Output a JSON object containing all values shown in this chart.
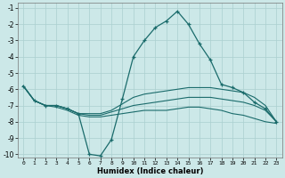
{
  "xlabel": "Humidex (Indice chaleur)",
  "background_color": "#cce8e8",
  "grid_color": "#aacfcf",
  "line_color": "#1a6b6b",
  "xlim": [
    -0.5,
    23.5
  ],
  "ylim": [
    -10.2,
    -0.7
  ],
  "yticks": [
    -10,
    -9,
    -8,
    -7,
    -6,
    -5,
    -4,
    -3,
    -2,
    -1
  ],
  "xticks": [
    0,
    1,
    2,
    3,
    4,
    5,
    6,
    7,
    8,
    9,
    10,
    11,
    12,
    13,
    14,
    15,
    16,
    17,
    18,
    19,
    20,
    21,
    22,
    23
  ],
  "line1_x": [
    0,
    1,
    2,
    3,
    4,
    5,
    6,
    7,
    8,
    9,
    10,
    11,
    12,
    13,
    14,
    15,
    16,
    17,
    18,
    19,
    20,
    21,
    22,
    23
  ],
  "line1_y": [
    -5.8,
    -6.7,
    -7.0,
    -7.0,
    -7.2,
    -7.5,
    -10.0,
    -10.1,
    -9.1,
    -6.6,
    -4.0,
    -3.0,
    -2.2,
    -1.8,
    -1.2,
    -2.0,
    -3.2,
    -4.2,
    -5.7,
    -5.9,
    -6.2,
    -6.8,
    -7.2,
    -8.0
  ],
  "line2_x": [
    0,
    1,
    2,
    3,
    4,
    5,
    6,
    7,
    8,
    9,
    10,
    11,
    12,
    13,
    14,
    15,
    16,
    17,
    18,
    19,
    20,
    21,
    22,
    23
  ],
  "line2_y": [
    -5.8,
    -6.7,
    -7.0,
    -7.0,
    -7.2,
    -7.5,
    -7.5,
    -7.5,
    -7.3,
    -6.9,
    -6.5,
    -6.3,
    -6.2,
    -6.1,
    -6.0,
    -5.9,
    -5.9,
    -5.9,
    -6.0,
    -6.1,
    -6.2,
    -6.5,
    -7.0,
    -8.0
  ],
  "line3_x": [
    0,
    1,
    2,
    3,
    4,
    5,
    6,
    7,
    8,
    9,
    10,
    11,
    12,
    13,
    14,
    15,
    16,
    17,
    18,
    19,
    20,
    21,
    22,
    23
  ],
  "line3_y": [
    -5.8,
    -6.7,
    -7.0,
    -7.0,
    -7.2,
    -7.5,
    -7.6,
    -7.6,
    -7.4,
    -7.2,
    -7.0,
    -6.9,
    -6.8,
    -6.7,
    -6.6,
    -6.5,
    -6.5,
    -6.5,
    -6.6,
    -6.7,
    -6.8,
    -7.0,
    -7.3,
    -8.0
  ],
  "line4_x": [
    0,
    1,
    2,
    3,
    4,
    5,
    6,
    7,
    8,
    9,
    10,
    11,
    12,
    13,
    14,
    15,
    16,
    17,
    18,
    19,
    20,
    21,
    22,
    23
  ],
  "line4_y": [
    -5.8,
    -6.7,
    -7.0,
    -7.1,
    -7.3,
    -7.6,
    -7.7,
    -7.7,
    -7.6,
    -7.5,
    -7.4,
    -7.3,
    -7.3,
    -7.3,
    -7.2,
    -7.1,
    -7.1,
    -7.2,
    -7.3,
    -7.5,
    -7.6,
    -7.8,
    -8.0,
    -8.1
  ]
}
